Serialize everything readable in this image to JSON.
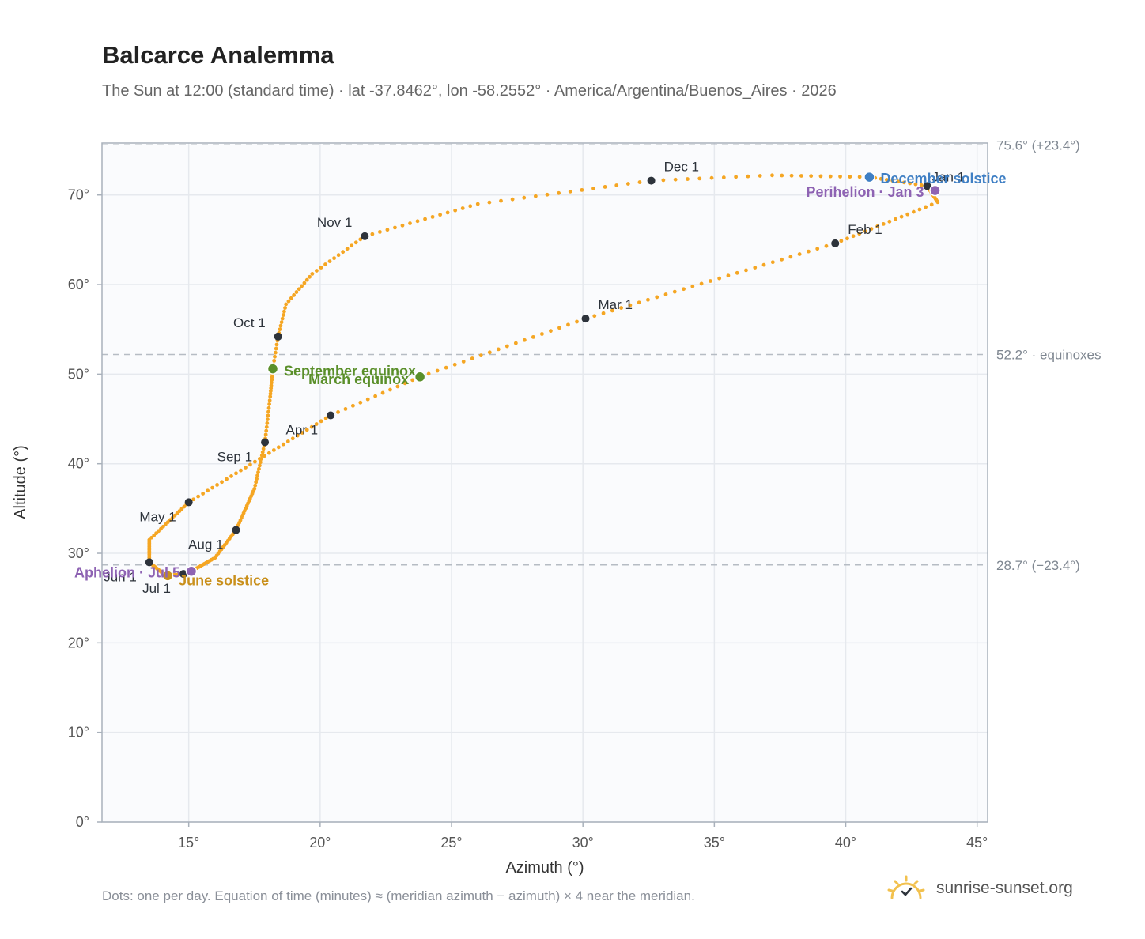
{
  "header": {
    "title": "Balcarce Analemma",
    "subtitle": "The Sun at 12:00 (standard time) · lat -37.8462°, lon -58.2552° · America/Argentina/Buenos_Aires · 2026"
  },
  "footer": {
    "note": "Dots: one per day. Equation of time (minutes) ≈ (meridian azimuth − azimuth) × 4 near the meridian.",
    "brand": "sunrise-sunset.org"
  },
  "colors": {
    "path": "#f5a623",
    "month_marker": "#2d333b",
    "equinox": "#5a8f2a",
    "june_solstice": "#c9901c",
    "december_solstice": "#3f7fc4",
    "apsis": "#8e63b3",
    "reference_line": "#b6bcc4",
    "grid": "#e6e9ee",
    "plot_bg": "#fafbfd"
  },
  "chart_data": {
    "type": "scatter",
    "xlabel": "Azimuth (°)",
    "ylabel": "Altitude (°)",
    "xlim": [
      11.7,
      45.4
    ],
    "ylim": [
      0,
      75.8
    ],
    "x_ticks": [
      15,
      20,
      25,
      30,
      35,
      40,
      45
    ],
    "x_tick_labels": [
      "15°",
      "20°",
      "25°",
      "30°",
      "35°",
      "40°",
      "45°"
    ],
    "y_ticks": [
      0,
      10,
      20,
      30,
      40,
      50,
      60,
      70
    ],
    "y_tick_labels": [
      "0°",
      "10°",
      "20°",
      "30°",
      "40°",
      "50°",
      "60°",
      "70°"
    ],
    "grid": true,
    "reference_lines": [
      {
        "y": 75.6,
        "label": "75.6° (+23.4°)"
      },
      {
        "y": 52.2,
        "label": "52.2° · equinoxes"
      },
      {
        "y": 28.7,
        "label": "28.7° (−23.4°)"
      }
    ],
    "path_keypoints": [
      {
        "day": 1,
        "az": 43.1,
        "alt": 71.0
      },
      {
        "day": 15,
        "az": 43.5,
        "alt": 69.2
      },
      {
        "day": 32,
        "az": 39.6,
        "alt": 64.6
      },
      {
        "day": 60,
        "az": 30.1,
        "alt": 56.2
      },
      {
        "day": 79,
        "az": 23.8,
        "alt": 49.7
      },
      {
        "day": 91,
        "az": 20.4,
        "alt": 45.4
      },
      {
        "day": 121,
        "az": 15.0,
        "alt": 35.7
      },
      {
        "day": 138,
        "az": 13.5,
        "alt": 31.5
      },
      {
        "day": 152,
        "az": 13.5,
        "alt": 29.0
      },
      {
        "day": 162,
        "az": 14.0,
        "alt": 27.8
      },
      {
        "day": 172,
        "az": 14.2,
        "alt": 27.5
      },
      {
        "day": 182,
        "az": 14.8,
        "alt": 27.7
      },
      {
        "day": 187,
        "az": 15.1,
        "alt": 28.0
      },
      {
        "day": 200,
        "az": 16.0,
        "alt": 29.5
      },
      {
        "day": 213,
        "az": 16.8,
        "alt": 32.6
      },
      {
        "day": 230,
        "az": 17.5,
        "alt": 37.2
      },
      {
        "day": 244,
        "az": 17.9,
        "alt": 42.4
      },
      {
        "day": 256,
        "az": 18.1,
        "alt": 47.5
      },
      {
        "day": 266,
        "az": 18.2,
        "alt": 50.6
      },
      {
        "day": 274,
        "az": 18.4,
        "alt": 54.2
      },
      {
        "day": 283,
        "az": 18.7,
        "alt": 57.8
      },
      {
        "day": 293,
        "az": 19.7,
        "alt": 61.2
      },
      {
        "day": 305,
        "az": 21.7,
        "alt": 65.4
      },
      {
        "day": 320,
        "az": 26.0,
        "alt": 69.0
      },
      {
        "day": 335,
        "az": 32.6,
        "alt": 71.6
      },
      {
        "day": 345,
        "az": 37.2,
        "alt": 72.2
      },
      {
        "day": 355,
        "az": 40.9,
        "alt": 72.0
      },
      {
        "day": 365,
        "az": 43.1,
        "alt": 71.0
      }
    ],
    "month_markers": [
      {
        "label": "Jan 1",
        "az": 43.1,
        "alt": 71.0,
        "anchor": "start",
        "dx": 6,
        "dy": -6
      },
      {
        "label": "Feb 1",
        "az": 39.6,
        "alt": 64.6,
        "anchor": "start",
        "dx": 16,
        "dy": -12
      },
      {
        "label": "Mar 1",
        "az": 30.1,
        "alt": 56.2,
        "anchor": "start",
        "dx": 16,
        "dy": -12
      },
      {
        "label": "Apr 1",
        "az": 20.4,
        "alt": 45.4,
        "anchor": "end",
        "dx": -16,
        "dy": 24
      },
      {
        "label": "May 1",
        "az": 15.0,
        "alt": 35.7,
        "anchor": "end",
        "dx": -16,
        "dy": 24
      },
      {
        "label": "Jun 1",
        "az": 13.5,
        "alt": 29.0,
        "anchor": "end",
        "dx": -16,
        "dy": 24
      },
      {
        "label": "Jul 1",
        "az": 14.8,
        "alt": 27.7,
        "anchor": "end",
        "dx": -16,
        "dy": 24
      },
      {
        "label": "Aug 1",
        "az": 16.8,
        "alt": 32.6,
        "anchor": "end",
        "dx": -16,
        "dy": 24
      },
      {
        "label": "Sep 1",
        "az": 17.9,
        "alt": 42.4,
        "anchor": "end",
        "dx": -16,
        "dy": 24
      },
      {
        "label": "Oct 1",
        "az": 18.4,
        "alt": 54.2,
        "anchor": "end",
        "dx": -16,
        "dy": -12
      },
      {
        "label": "Nov 1",
        "az": 21.7,
        "alt": 65.4,
        "anchor": "end",
        "dx": -16,
        "dy": -12
      },
      {
        "label": "Dec 1",
        "az": 32.6,
        "alt": 71.6,
        "anchor": "start",
        "dx": 16,
        "dy": -12
      }
    ],
    "events": [
      {
        "label": "December solstice",
        "az": 40.9,
        "alt": 72.0,
        "color_key": "december_solstice",
        "anchor": "start",
        "dx": 14,
        "dy": 8
      },
      {
        "label": "Perihelion · Jan 3",
        "az": 43.4,
        "alt": 70.5,
        "color_key": "apsis",
        "anchor": "end",
        "dx": -14,
        "dy": 8
      },
      {
        "label": "September equinox",
        "az": 18.2,
        "alt": 50.6,
        "color_key": "equinox",
        "anchor": "start",
        "dx": 14,
        "dy": 9
      },
      {
        "label": "March equinox",
        "az": 23.8,
        "alt": 49.7,
        "color_key": "equinox",
        "anchor": "end",
        "dx": -14,
        "dy": 9
      },
      {
        "label": "June solstice",
        "az": 14.2,
        "alt": 27.5,
        "color_key": "june_solstice",
        "anchor": "start",
        "dx": 14,
        "dy": 12
      },
      {
        "label": "Aphelion · Jul 5",
        "az": 15.1,
        "alt": 28.0,
        "color_key": "apsis",
        "anchor": "end",
        "dx": -14,
        "dy": 8
      }
    ]
  }
}
